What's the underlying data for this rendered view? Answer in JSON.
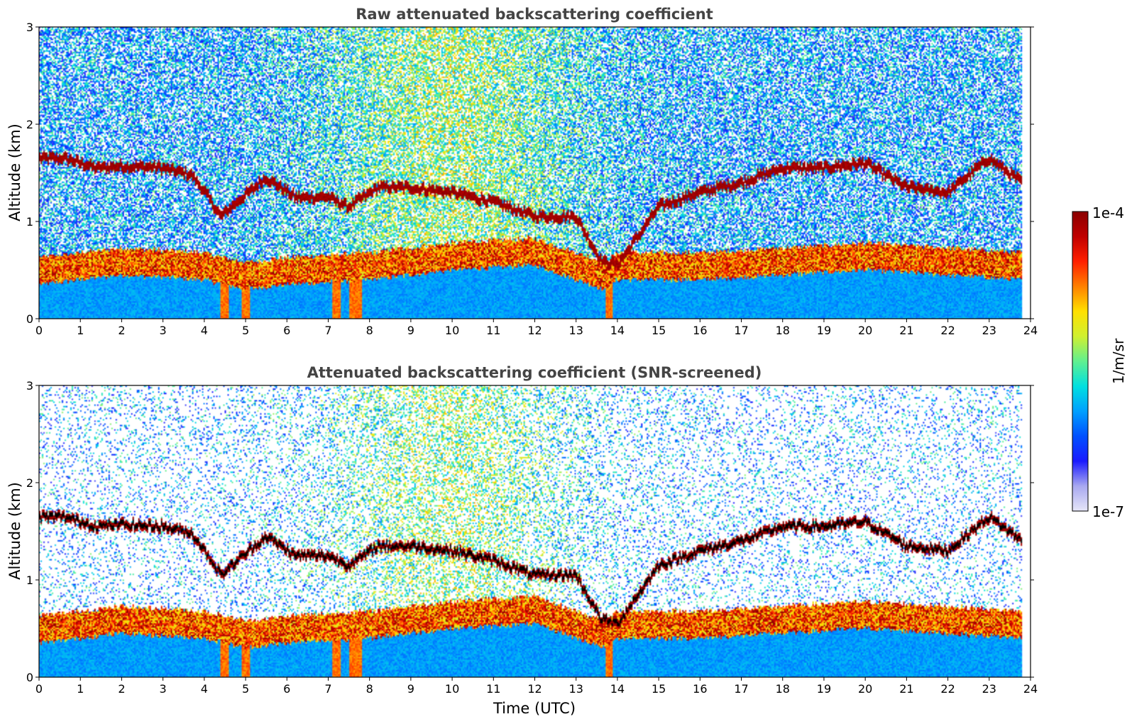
{
  "colormap": {
    "label": "1/m/sr",
    "max_label": "1e-4",
    "min_label": "1e-7",
    "log_min": -7,
    "log_max": -4,
    "stops": [
      "#e6e6f8",
      "#a8a8f0",
      "#1a1aff",
      "#0050ff",
      "#00a0ff",
      "#00e0e0",
      "#60f090",
      "#d0f030",
      "#ffe000",
      "#ff8000",
      "#ff2000",
      "#c00000",
      "#8a0000"
    ]
  },
  "chart_data": [
    {
      "type": "heatmap",
      "title": "Raw attenuated backscattering coefficient",
      "xlabel": "",
      "ylabel": "Altitude (km)",
      "xlim": [
        0,
        24
      ],
      "ylim": [
        0,
        3
      ],
      "x_ticks": [
        "0",
        "1",
        "2",
        "3",
        "4",
        "5",
        "6",
        "7",
        "8",
        "9",
        "10",
        "11",
        "12",
        "13",
        "14",
        "15",
        "16",
        "17",
        "18",
        "19",
        "20",
        "21",
        "22",
        "23",
        "24"
      ],
      "y_ticks": [
        "0",
        "1",
        "2",
        "3"
      ],
      "data_end_time": 23.8,
      "screened": false,
      "cloud_layer": {
        "time": [
          0,
          0.6,
          1.4,
          2.0,
          3.0,
          3.7,
          4.1,
          4.4,
          4.8,
          5.5,
          6.2,
          7.0,
          7.5,
          8.2,
          9.0,
          10.0,
          11.0,
          12.0,
          13.0,
          13.6,
          14.0,
          15.0,
          16.0,
          17.0,
          18.0,
          19.0,
          20.0,
          21.0,
          22.0,
          23.0,
          23.8
        ],
        "altitude_km": [
          1.65,
          1.65,
          1.55,
          1.57,
          1.55,
          1.48,
          1.25,
          1.05,
          1.2,
          1.45,
          1.25,
          1.25,
          1.15,
          1.35,
          1.35,
          1.3,
          1.2,
          1.05,
          1.05,
          0.6,
          0.55,
          1.15,
          1.3,
          1.4,
          1.55,
          1.55,
          1.6,
          1.35,
          1.3,
          1.65,
          1.4
        ]
      },
      "boundary_layer": {
        "time": [
          0,
          2,
          4,
          5,
          6,
          8,
          10,
          12,
          13.7,
          14,
          16,
          18,
          20,
          22,
          23.8
        ],
        "altitude_km": [
          0.55,
          0.65,
          0.6,
          0.5,
          0.55,
          0.6,
          0.7,
          0.75,
          0.5,
          0.6,
          0.6,
          0.65,
          0.7,
          0.65,
          0.6
        ]
      },
      "high_signal_periods": [
        [
          4.4,
          4.6
        ],
        [
          4.9,
          5.1
        ],
        [
          7.1,
          7.3
        ],
        [
          7.5,
          7.8
        ],
        [
          13.7,
          13.9
        ]
      ]
    },
    {
      "type": "heatmap",
      "title": "Attenuated backscattering coefficient (SNR-screened)",
      "xlabel": "Time (UTC)",
      "ylabel": "Altitude (km)",
      "xlim": [
        0,
        24
      ],
      "ylim": [
        0,
        3
      ],
      "x_ticks": [
        "0",
        "1",
        "2",
        "3",
        "4",
        "5",
        "6",
        "7",
        "8",
        "9",
        "10",
        "11",
        "12",
        "13",
        "14",
        "15",
        "16",
        "17",
        "18",
        "19",
        "20",
        "21",
        "22",
        "23",
        "24"
      ],
      "y_ticks": [
        "0",
        "1",
        "2",
        "3"
      ],
      "data_end_time": 23.8,
      "screened": true,
      "cloud_layer": {
        "time": [
          0,
          0.6,
          1.4,
          2.0,
          3.0,
          3.7,
          4.1,
          4.4,
          4.8,
          5.5,
          6.2,
          7.0,
          7.5,
          8.2,
          9.0,
          10.0,
          11.0,
          12.0,
          13.0,
          13.6,
          14.0,
          15.0,
          16.0,
          17.0,
          18.0,
          19.0,
          20.0,
          21.0,
          22.0,
          23.0,
          23.8
        ],
        "altitude_km": [
          1.65,
          1.65,
          1.55,
          1.57,
          1.55,
          1.48,
          1.25,
          1.05,
          1.2,
          1.45,
          1.25,
          1.25,
          1.15,
          1.35,
          1.35,
          1.3,
          1.2,
          1.05,
          1.05,
          0.6,
          0.55,
          1.15,
          1.3,
          1.4,
          1.55,
          1.55,
          1.6,
          1.35,
          1.3,
          1.65,
          1.4
        ]
      },
      "boundary_layer": {
        "time": [
          0,
          2,
          4,
          5,
          6,
          8,
          10,
          12,
          13.7,
          14,
          16,
          18,
          20,
          22,
          23.8
        ],
        "altitude_km": [
          0.55,
          0.65,
          0.6,
          0.5,
          0.55,
          0.6,
          0.7,
          0.75,
          0.5,
          0.6,
          0.6,
          0.65,
          0.7,
          0.65,
          0.6
        ]
      },
      "high_signal_periods": [
        [
          4.4,
          4.6
        ],
        [
          4.9,
          5.1
        ],
        [
          7.1,
          7.3
        ],
        [
          7.5,
          7.8
        ],
        [
          13.7,
          13.9
        ]
      ]
    }
  ]
}
